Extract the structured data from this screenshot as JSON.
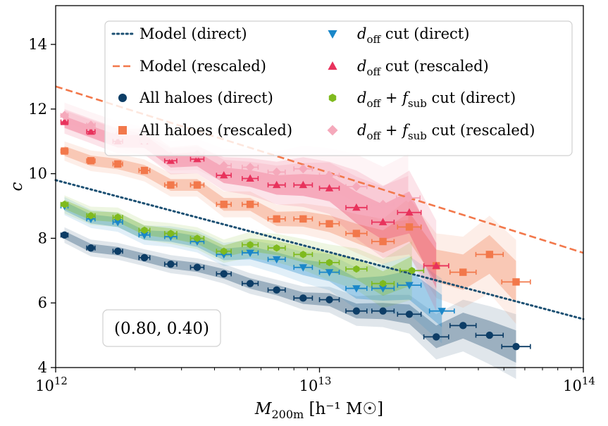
{
  "chart_data": {
    "type": "scatter",
    "x_scale": "log",
    "xlim": [
      1000000000000.0,
      100000000000000.0
    ],
    "ylim": [
      4,
      15.2
    ],
    "xlabel_base": "M",
    "xlabel_sub": "200m",
    "xlabel_units": "[h⁻¹ M☉]",
    "ylabel": "c",
    "x_ticks": [
      {
        "value": 1000000000000.0,
        "base": "10",
        "exp": "12"
      },
      {
        "value": 10000000000000.0,
        "base": "10",
        "exp": "13"
      },
      {
        "value": 100000000000000.0,
        "base": "10",
        "exp": "14"
      }
    ],
    "y_ticks": [
      {
        "value": 4,
        "label": "4"
      },
      {
        "value": 6,
        "label": "6"
      },
      {
        "value": 8,
        "label": "8"
      },
      {
        "value": 10,
        "label": "10"
      },
      {
        "value": 12,
        "label": "12"
      },
      {
        "value": 14,
        "label": "14"
      }
    ],
    "annotation": "(0.80, 0.40)",
    "legend_position": "top",
    "lines": [
      {
        "name": "Model (direct)",
        "style": "dotted",
        "color": "#1b4f72",
        "x": [
          1000000000000.0,
          100000000000000.0
        ],
        "y": [
          9.8,
          5.5
        ]
      },
      {
        "name": "Model (rescaled)",
        "style": "dashed",
        "color": "#f2784b",
        "x": [
          1000000000000.0,
          100000000000000.0
        ],
        "y": [
          12.7,
          7.55
        ]
      }
    ],
    "series": [
      {
        "name": "All haloes (direct)",
        "marker": "circle",
        "color": "#0d3d66",
        "x": [
          1080000000000.0,
          1360000000000.0,
          1720000000000.0,
          2170000000000.0,
          2730000000000.0,
          3440000000000.0,
          4340000000000.0,
          5460000000000.0,
          6880000000000.0,
          8670000000000.0,
          10900000000000.0,
          13800000000000.0,
          17400000000000.0,
          21900000000000.0,
          27700000000000.0,
          35000000000000.0,
          44100000000000.0,
          55600000000000.0
        ],
        "y": [
          8.1,
          7.7,
          7.6,
          7.4,
          7.2,
          7.1,
          6.9,
          6.6,
          6.4,
          6.15,
          6.1,
          5.75,
          5.75,
          5.65,
          4.95,
          5.3,
          5.0,
          4.65
        ],
        "band": [
          0.12,
          0.13,
          0.13,
          0.13,
          0.14,
          0.14,
          0.15,
          0.16,
          0.16,
          0.18,
          0.2,
          0.23,
          0.25,
          0.3,
          0.35,
          0.4,
          0.45,
          0.5
        ]
      },
      {
        "name": "All haloes (rescaled)",
        "marker": "square",
        "color": "#f2784b",
        "x": [
          1080000000000.0,
          1360000000000.0,
          1720000000000.0,
          2170000000000.0,
          2730000000000.0,
          3440000000000.0,
          4340000000000.0,
          5460000000000.0,
          6880000000000.0,
          8670000000000.0,
          10900000000000.0,
          13800000000000.0,
          17400000000000.0,
          21900000000000.0,
          27700000000000.0,
          35000000000000.0,
          44100000000000.0,
          55600000000000.0
        ],
        "y": [
          10.7,
          10.4,
          10.3,
          10.1,
          9.65,
          9.65,
          9.05,
          9.05,
          8.6,
          8.6,
          8.45,
          8.15,
          7.9,
          8.35,
          7.15,
          6.95,
          7.5,
          6.65
        ],
        "band": [
          0.15,
          0.16,
          0.16,
          0.17,
          0.18,
          0.18,
          0.2,
          0.2,
          0.22,
          0.24,
          0.26,
          0.3,
          0.35,
          0.45,
          0.5,
          0.55,
          0.6,
          0.65
        ]
      },
      {
        "name": "d_off cut (direct)",
        "marker": "triangle-down",
        "color": "#1a87c9",
        "x": [
          1080000000000.0,
          1360000000000.0,
          1720000000000.0,
          2170000000000.0,
          2730000000000.0,
          3440000000000.0,
          4340000000000.0,
          5460000000000.0,
          6880000000000.0,
          8670000000000.0,
          10900000000000.0,
          13800000000000.0,
          17400000000000.0,
          21900000000000.0,
          29100000000000.0
        ],
        "y": [
          9.0,
          8.6,
          8.5,
          8.1,
          8.05,
          7.9,
          7.5,
          7.55,
          7.35,
          7.1,
          6.95,
          6.45,
          6.45,
          6.55,
          5.75
        ],
        "band": [
          0.14,
          0.14,
          0.15,
          0.15,
          0.16,
          0.17,
          0.18,
          0.2,
          0.22,
          0.24,
          0.28,
          0.32,
          0.38,
          0.45,
          0.5
        ]
      },
      {
        "name": "d_off cut (rescaled)",
        "marker": "triangle-up",
        "color": "#e8325c",
        "x": [
          1080000000000.0,
          1360000000000.0,
          1720000000000.0,
          2170000000000.0,
          2730000000000.0,
          3440000000000.0,
          4340000000000.0,
          5460000000000.0,
          6880000000000.0,
          8670000000000.0,
          10900000000000.0,
          13800000000000.0,
          17400000000000.0,
          21900000000000.0,
          27700000000000.0
        ],
        "y": [
          11.6,
          11.3,
          11.0,
          11.0,
          10.4,
          10.45,
          9.95,
          9.85,
          9.65,
          9.65,
          9.55,
          8.95,
          8.5,
          8.8,
          7.15
        ],
        "band": [
          0.18,
          0.18,
          0.19,
          0.2,
          0.21,
          0.22,
          0.24,
          0.26,
          0.3,
          0.34,
          0.4,
          0.48,
          0.55,
          0.65,
          0.7
        ]
      },
      {
        "name": "d_off + f_sub cut (direct)",
        "marker": "hexagon",
        "color": "#7fba1e",
        "x": [
          1080000000000.0,
          1360000000000.0,
          1720000000000.0,
          2170000000000.0,
          2730000000000.0,
          3440000000000.0,
          4340000000000.0,
          5460000000000.0,
          6880000000000.0,
          8670000000000.0,
          10900000000000.0,
          13800000000000.0,
          17400000000000.0,
          22400000000000.0
        ],
        "y": [
          9.05,
          8.7,
          8.65,
          8.25,
          8.15,
          8.0,
          7.6,
          7.8,
          7.7,
          7.5,
          7.25,
          7.05,
          6.6,
          7.0
        ],
        "band": [
          0.14,
          0.14,
          0.15,
          0.15,
          0.16,
          0.17,
          0.18,
          0.2,
          0.22,
          0.24,
          0.28,
          0.32,
          0.38,
          0.45
        ]
      },
      {
        "name": "d_off + f_sub cut (rescaled)",
        "marker": "diamond",
        "color": "#f5a9bb",
        "x": [
          1080000000000.0,
          1360000000000.0,
          1720000000000.0,
          2170000000000.0,
          2730000000000.0,
          3440000000000.0,
          4340000000000.0,
          5460000000000.0,
          6880000000000.0,
          8670000000000.0,
          10900000000000.0,
          13800000000000.0,
          17400000000000.0,
          21700000000000.0
        ],
        "y": [
          11.8,
          11.5,
          11.2,
          11.0,
          10.55,
          10.6,
          10.25,
          10.2,
          10.05,
          10.15,
          9.95,
          9.6,
          9.05,
          9.25
        ],
        "band": [
          0.2,
          0.2,
          0.21,
          0.22,
          0.23,
          0.24,
          0.26,
          0.28,
          0.32,
          0.36,
          0.42,
          0.5,
          0.58,
          0.68
        ]
      }
    ],
    "legend": [
      {
        "label": "Model (direct)",
        "kind": "line-dotted",
        "color": "#1b4f72"
      },
      {
        "label": "Model (rescaled)",
        "kind": "line-dashed",
        "color": "#f2784b"
      },
      {
        "label": "All haloes (direct)",
        "kind": "circle",
        "color": "#0d3d66"
      },
      {
        "label": "All haloes (rescaled)",
        "kind": "square",
        "color": "#f2784b"
      },
      {
        "label": "d_off cut (direct)",
        "kind": "triangle-down",
        "color": "#1a87c9"
      },
      {
        "label": "d_off cut (rescaled)",
        "kind": "triangle-up",
        "color": "#e8325c"
      },
      {
        "label": "d_off + f_sub cut (direct)",
        "kind": "hexagon",
        "color": "#7fba1e"
      },
      {
        "label": "d_off + f_sub cut (rescaled)",
        "kind": "diamond",
        "color": "#f5a9bb"
      }
    ]
  }
}
